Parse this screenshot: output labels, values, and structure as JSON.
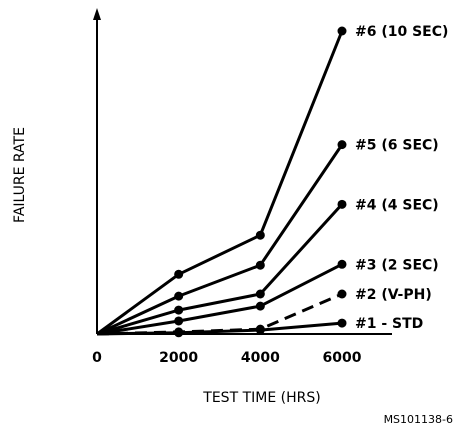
{
  "chart_data": {
    "type": "line",
    "xlabel": "TEST TIME (HRS)",
    "ylabel": "FAILURE RATE",
    "x_ticks": [
      "0",
      "2000",
      "4000",
      "6000"
    ],
    "xlim": [
      0,
      7000
    ],
    "ylim": [
      0,
      100
    ],
    "grid": false,
    "y_ticks_shown": false,
    "credit": "MS101138-6",
    "series": [
      {
        "name": "#6 (10 SEC)",
        "dashed": false,
        "x": [
          0,
          2000,
          4000,
          6000
        ],
        "y": [
          0,
          19.7,
          32.6,
          100
        ]
      },
      {
        "name": "#5 (6 SEC)",
        "dashed": false,
        "x": [
          0,
          2000,
          4000,
          6000
        ],
        "y": [
          0,
          12.5,
          22.7,
          62.5
        ]
      },
      {
        "name": "#4 (4 SEC)",
        "dashed": false,
        "x": [
          0,
          2000,
          4000,
          6000
        ],
        "y": [
          0,
          7.9,
          13.2,
          42.8
        ]
      },
      {
        "name": "#3 (2 SEC)",
        "dashed": false,
        "x": [
          0,
          2000,
          4000,
          6000
        ],
        "y": [
          0,
          4.3,
          9.2,
          23.0
        ]
      },
      {
        "name": "#2 (V-PH)",
        "dashed": true,
        "x": [
          0,
          2000,
          4000,
          6000
        ],
        "y": [
          0,
          0.7,
          1.6,
          13.2
        ]
      },
      {
        "name": "#1 - STD",
        "dashed": false,
        "x": [
          0,
          2000,
          4000,
          6000
        ],
        "y": [
          0,
          0.4,
          1.3,
          3.6
        ]
      }
    ]
  }
}
